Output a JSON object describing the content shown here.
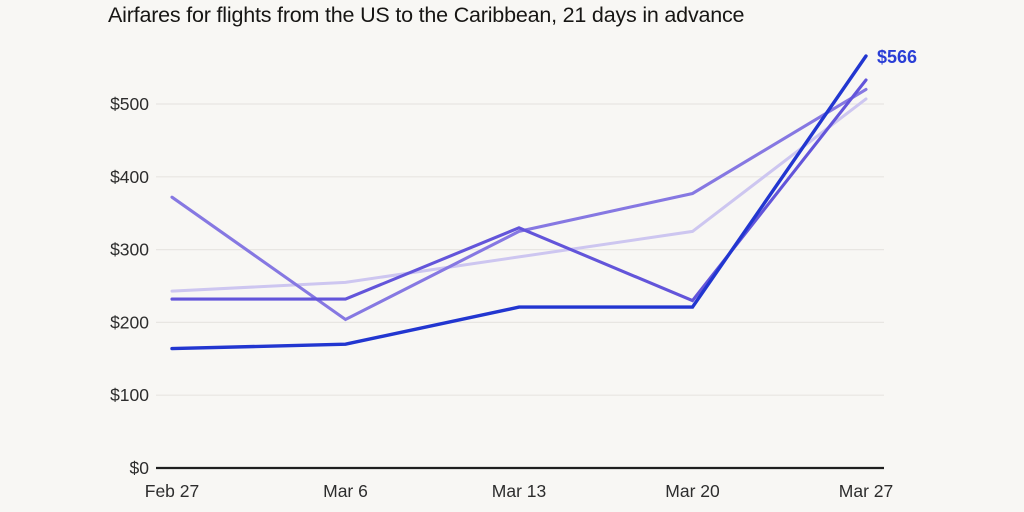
{
  "chart_data": {
    "type": "line",
    "title": "Airfares for flights from the US to the Caribbean, 21 days in advance",
    "x_labels": [
      "Feb 27",
      "Mar 6",
      "Mar 13",
      "Mar 20",
      "Mar 27"
    ],
    "y_ticks": [
      {
        "label": "$0",
        "value": 0
      },
      {
        "label": "$100",
        "value": 100
      },
      {
        "label": "$200",
        "value": 200
      },
      {
        "label": "$300",
        "value": 300
      },
      {
        "label": "$400",
        "value": 400
      },
      {
        "label": "$500",
        "value": 500
      }
    ],
    "ylim": [
      0,
      580
    ],
    "grid": "horizontal-only",
    "legend": "none",
    "series": [
      {
        "name": "fare-dark-blue",
        "color": "#2236d0",
        "width": 3.4,
        "values": [
          164,
          170,
          221,
          221,
          566
        ],
        "end_label": "$566"
      },
      {
        "name": "fare-deep-violet",
        "color": "#6355da",
        "width": 3.1,
        "values": [
          232,
          232,
          330,
          230,
          533
        ]
      },
      {
        "name": "fare-mid-violet",
        "color": "#8678e2",
        "width": 3.1,
        "values": [
          372,
          204,
          325,
          377,
          520
        ]
      },
      {
        "name": "fare-light-lavender",
        "color": "#cdc6f0",
        "width": 3.0,
        "values": [
          243,
          255,
          290,
          325,
          507
        ]
      }
    ],
    "annotation": {
      "text": "$566",
      "color": "#2a3ed6"
    },
    "colors": {
      "background": "#f8f7f4",
      "gridline": "#e8e6e2",
      "axis": "#1f1f1f",
      "tick_text": "#2d2d2d",
      "title_text": "#171614"
    }
  }
}
